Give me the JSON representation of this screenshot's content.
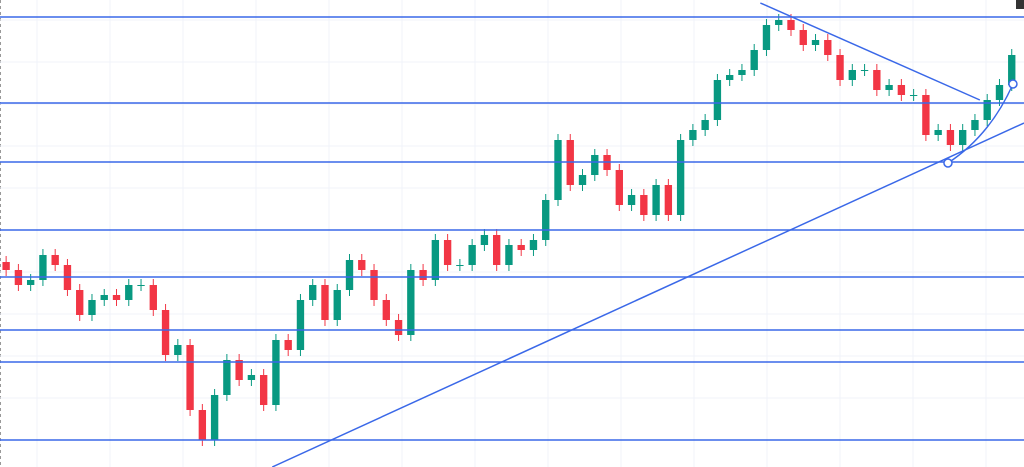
{
  "chart_data": {
    "type": "candlestick",
    "open": [
      205,
      197,
      182,
      187,
      212,
      202,
      177,
      152,
      167,
      172,
      167,
      182,
      182,
      157,
      112,
      122,
      57,
      27,
      72,
      107,
      87,
      92,
      62,
      127,
      117,
      167,
      182,
      147,
      177,
      207,
      197,
      167,
      147,
      132,
      197,
      187,
      227,
      202,
      202,
      222,
      232,
      202,
      222,
      217,
      227,
      267,
      327,
      282,
      292,
      312,
      297,
      262,
      272,
      252,
      282,
      252,
      327,
      337,
      347,
      387,
      392,
      397,
      417,
      442,
      447,
      437,
      422,
      427,
      412,
      387,
      397,
      397,
      377,
      382,
      372,
      372,
      332,
      337,
      322,
      337,
      347,
      367,
      382
    ],
    "high": [
      211,
      203,
      193,
      218,
      218,
      208,
      183,
      173,
      178,
      178,
      188,
      188,
      188,
      163,
      128,
      128,
      63,
      78,
      113,
      113,
      98,
      98,
      133,
      133,
      173,
      188,
      188,
      183,
      213,
      213,
      203,
      173,
      153,
      203,
      203,
      233,
      233,
      208,
      228,
      238,
      238,
      228,
      228,
      233,
      273,
      333,
      333,
      298,
      318,
      318,
      303,
      278,
      278,
      288,
      288,
      333,
      343,
      353,
      393,
      398,
      403,
      423,
      448,
      453,
      453,
      443,
      433,
      433,
      418,
      403,
      403,
      403,
      388,
      388,
      378,
      378,
      343,
      343,
      343,
      353,
      373,
      388,
      418
    ],
    "low": [
      191,
      176,
      176,
      181,
      196,
      171,
      146,
      146,
      161,
      161,
      161,
      176,
      151,
      106,
      106,
      51,
      21,
      21,
      66,
      81,
      81,
      56,
      56,
      111,
      111,
      161,
      141,
      141,
      171,
      191,
      161,
      141,
      126,
      126,
      181,
      181,
      196,
      196,
      196,
      216,
      196,
      196,
      211,
      211,
      221,
      261,
      276,
      276,
      286,
      291,
      256,
      256,
      246,
      246,
      246,
      246,
      321,
      331,
      341,
      381,
      386,
      391,
      411,
      436,
      431,
      416,
      416,
      406,
      381,
      381,
      391,
      371,
      371,
      366,
      366,
      326,
      326,
      316,
      316,
      331,
      341,
      361,
      376
    ],
    "close": [
      197,
      182,
      187,
      212,
      202,
      177,
      152,
      167,
      172,
      167,
      182,
      182,
      157,
      112,
      122,
      57,
      27,
      72,
      107,
      87,
      92,
      62,
      127,
      117,
      167,
      182,
      147,
      177,
      207,
      197,
      167,
      147,
      132,
      197,
      187,
      227,
      202,
      202,
      222,
      232,
      202,
      222,
      217,
      227,
      267,
      327,
      282,
      292,
      312,
      297,
      262,
      272,
      252,
      282,
      252,
      327,
      337,
      347,
      387,
      392,
      397,
      417,
      442,
      447,
      437,
      422,
      427,
      412,
      387,
      397,
      397,
      377,
      382,
      372,
      372,
      332,
      337,
      322,
      337,
      347,
      367,
      382,
      412
    ],
    "xlim": [
      -0.5,
      83
    ],
    "ylim": [
      0,
      467
    ],
    "grid": true,
    "up_color": "#089981",
    "down_color": "#f23645",
    "line_color": "#3a68e8",
    "horizontal_lines": [
      450,
      364,
      305,
      237,
      190,
      137,
      105,
      27
    ],
    "trend_lines": [
      {
        "x": [
          21.7,
          83
        ],
        "y": [
          0,
          344
        ]
      },
      {
        "x": [
          61.5,
          79.4
        ],
        "y": [
          464,
          367
        ]
      }
    ],
    "curve": {
      "x": [
        76.8,
        82.1
      ],
      "y": [
        304,
        383
      ]
    }
  }
}
